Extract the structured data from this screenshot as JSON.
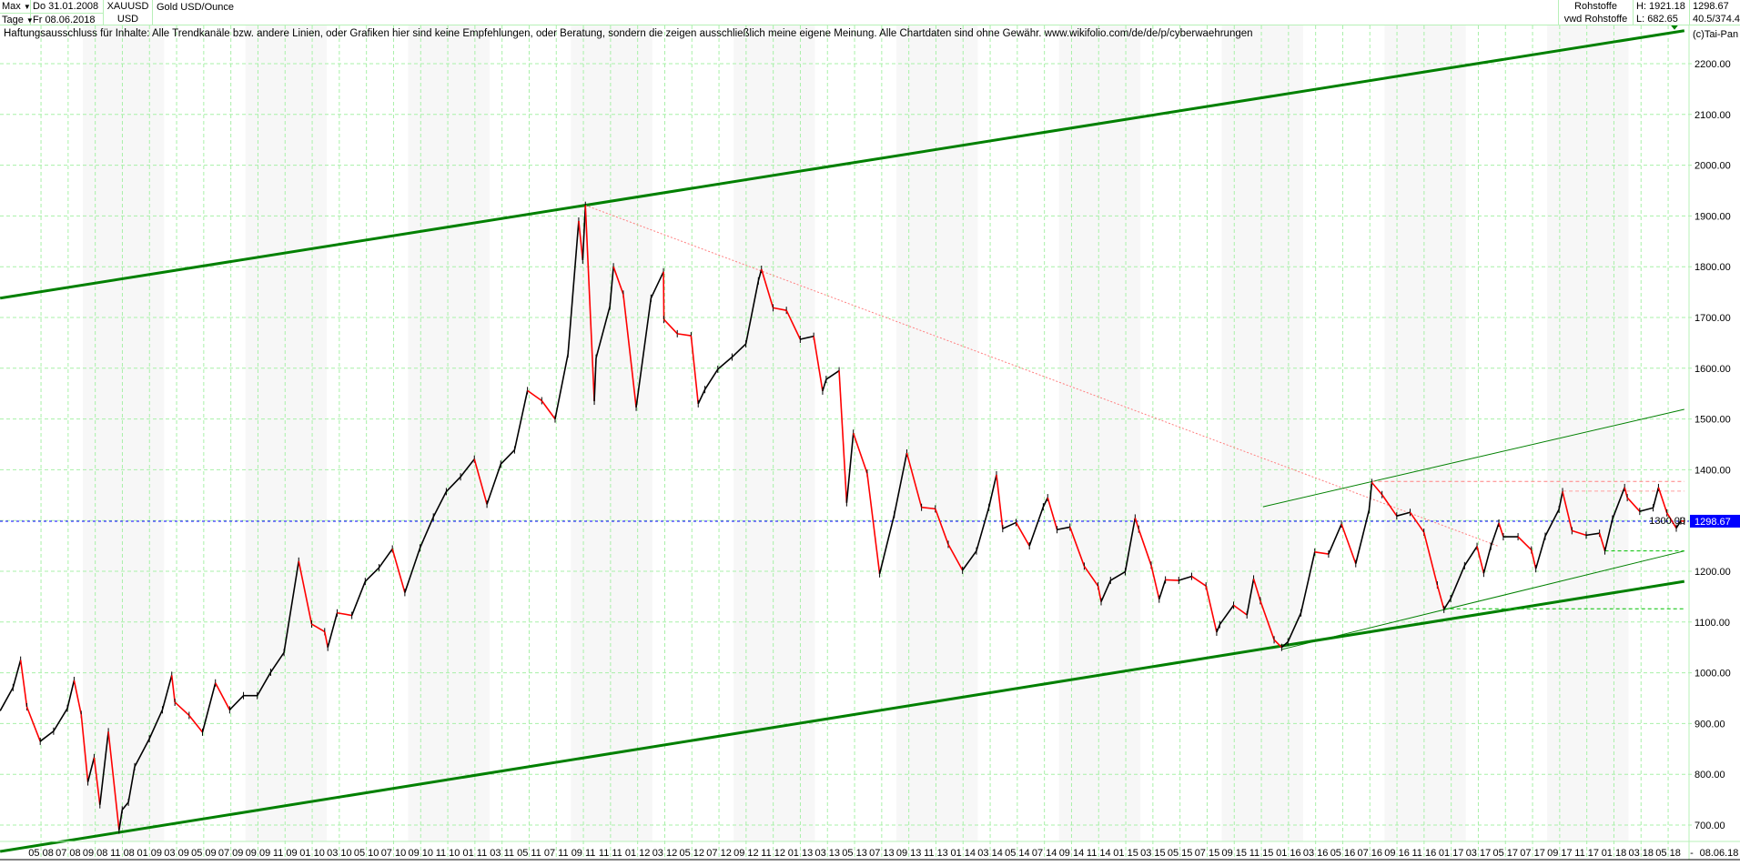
{
  "header": {
    "range_select": "Max",
    "period_select": "Tage",
    "date_from": "Do 31.01.2008",
    "date_to": "Fr 08.06.2018",
    "symbol": "XAUUSD",
    "currency": "USD",
    "name": "Gold USD/Ounce",
    "source1": "Rohstoffe",
    "source2": "vwd Rohstoffe",
    "high": "H: 1921.18",
    "low": "L: 682.65",
    "last": "1298.67",
    "extra": "40.5/374.4"
  },
  "disclaimer": "Haftungsausschluss für Inhalte: Alle Trendkanäle bzw. andere Linien, oder Grafiken hier sind keine Empfehlungen, oder Beratung, sondern die zeigen ausschließlich meine eigene Meinung. Alle Chartdaten sind ohne Gewähr.  www.wikifolio.com/de/de/p/cyberwaehrungen",
  "copyright": "(c)Tai-Pan",
  "colors": {
    "up": "#000000",
    "down": "#ff0000",
    "grid": "#a8f0a8",
    "channel": "#008000",
    "trend": "#ff8080",
    "last_price": "#0000ff",
    "band": "#f7f7f7"
  },
  "chart_data": {
    "type": "line",
    "title": "Gold USD/Ounce",
    "ylim": [
      650,
      2280
    ],
    "xlim": [
      "2008-01-31",
      "2018-06-08"
    ],
    "grid": true,
    "y_ticks": [
      "700.00",
      "800.00",
      "900.00",
      "1000.00",
      "1100.00",
      "1200.00",
      "1300.00",
      "1400.00",
      "1500.00",
      "1600.00",
      "1700.00",
      "1800.00",
      "1900.00",
      "2000.00",
      "2100.00",
      "2200.00"
    ],
    "x_ticks": [
      "05 08",
      "07 08",
      "09 08",
      "11 08",
      "01 09",
      "03 09",
      "05 09",
      "07 09",
      "09 09",
      "11 09",
      "01 10",
      "03 10",
      "05 10",
      "07 10",
      "09 10",
      "11 10",
      "01 11",
      "03 11",
      "05 11",
      "07 11",
      "09 11",
      "11 11",
      "01 12",
      "03 12",
      "05 12",
      "07 12",
      "09 12",
      "11 12",
      "01 13",
      "03 13",
      "05 13",
      "07 13",
      "09 13",
      "11 13",
      "01 14",
      "03 14",
      "05 14",
      "07 14",
      "09 14",
      "11 14",
      "01 15",
      "03 15",
      "05 15",
      "07 15",
      "09 15",
      "11 15",
      "01 16",
      "03 16",
      "05 16",
      "07 16",
      "09 16",
      "11 16",
      "01 17",
      "03 17",
      "05 17",
      "07 17",
      "09 17",
      "11 17",
      "01 18",
      "03 18",
      "05 18"
    ],
    "x_end_label": "08.06.18",
    "x_end_sep": "-",
    "last_price_label": "1298.67",
    "series": [
      {
        "points": [
          [
            "2008-01-31",
            925
          ],
          [
            "2008-02-29",
            971
          ],
          [
            "2008-03-17",
            1025
          ],
          [
            "2008-03-31",
            933
          ],
          [
            "2008-04-30",
            865
          ],
          [
            "2008-05-30",
            885
          ],
          [
            "2008-06-30",
            930
          ],
          [
            "2008-07-15",
            985
          ],
          [
            "2008-07-31",
            918
          ],
          [
            "2008-08-15",
            785
          ],
          [
            "2008-08-29",
            833
          ],
          [
            "2008-09-11",
            740
          ],
          [
            "2008-09-30",
            884
          ],
          [
            "2008-10-24",
            690
          ],
          [
            "2008-10-31",
            730
          ],
          [
            "2008-11-14",
            745
          ],
          [
            "2008-11-28",
            815
          ],
          [
            "2008-12-31",
            870
          ],
          [
            "2009-01-30",
            927
          ],
          [
            "2009-02-20",
            995
          ],
          [
            "2009-02-27",
            942
          ],
          [
            "2009-03-31",
            916
          ],
          [
            "2009-04-30",
            883
          ],
          [
            "2009-05-29",
            980
          ],
          [
            "2009-06-30",
            927
          ],
          [
            "2009-07-31",
            955
          ],
          [
            "2009-08-31",
            955
          ],
          [
            "2009-09-30",
            1001
          ],
          [
            "2009-10-30",
            1040
          ],
          [
            "2009-12-02",
            1220
          ],
          [
            "2009-12-31",
            1096
          ],
          [
            "2010-01-29",
            1081
          ],
          [
            "2010-02-05",
            1050
          ],
          [
            "2010-02-26",
            1118
          ],
          [
            "2010-03-31",
            1113
          ],
          [
            "2010-04-30",
            1180
          ],
          [
            "2010-05-31",
            1207
          ],
          [
            "2010-06-30",
            1244
          ],
          [
            "2010-07-28",
            1158
          ],
          [
            "2010-08-31",
            1246
          ],
          [
            "2010-09-30",
            1307
          ],
          [
            "2010-10-29",
            1357
          ],
          [
            "2010-11-30",
            1386
          ],
          [
            "2010-12-31",
            1421
          ],
          [
            "2011-01-28",
            1332
          ],
          [
            "2011-02-28",
            1411
          ],
          [
            "2011-03-31",
            1439
          ],
          [
            "2011-04-29",
            1556
          ],
          [
            "2011-05-31",
            1536
          ],
          [
            "2011-06-30",
            1500
          ],
          [
            "2011-07-29",
            1628
          ],
          [
            "2011-08-22",
            1890
          ],
          [
            "2011-08-31",
            1813
          ],
          [
            "2011-09-06",
            1921
          ],
          [
            "2011-09-26",
            1535
          ],
          [
            "2011-09-30",
            1620
          ],
          [
            "2011-10-31",
            1722
          ],
          [
            "2011-11-08",
            1800
          ],
          [
            "2011-11-30",
            1746
          ],
          [
            "2011-12-29",
            1523
          ],
          [
            "2012-01-31",
            1738
          ],
          [
            "2012-02-28",
            1790
          ],
          [
            "2012-02-29",
            1696
          ],
          [
            "2012-03-30",
            1668
          ],
          [
            "2012-04-30",
            1664
          ],
          [
            "2012-05-16",
            1530
          ],
          [
            "2012-05-31",
            1558
          ],
          [
            "2012-06-29",
            1598
          ],
          [
            "2012-07-31",
            1622
          ],
          [
            "2012-08-31",
            1648
          ],
          [
            "2012-09-28",
            1772
          ],
          [
            "2012-10-05",
            1795
          ],
          [
            "2012-10-31",
            1719
          ],
          [
            "2012-11-30",
            1714
          ],
          [
            "2012-12-31",
            1657
          ],
          [
            "2013-01-31",
            1663
          ],
          [
            "2013-02-20",
            1555
          ],
          [
            "2013-02-28",
            1578
          ],
          [
            "2013-03-29",
            1595
          ],
          [
            "2013-04-15",
            1335
          ],
          [
            "2013-04-30",
            1472
          ],
          [
            "2013-05-31",
            1393
          ],
          [
            "2013-06-28",
            1195
          ],
          [
            "2013-07-31",
            1312
          ],
          [
            "2013-08-28",
            1433
          ],
          [
            "2013-09-30",
            1326
          ],
          [
            "2013-10-31",
            1323
          ],
          [
            "2013-11-29",
            1253
          ],
          [
            "2013-12-31",
            1202
          ],
          [
            "2014-01-31",
            1240
          ],
          [
            "2014-02-28",
            1326
          ],
          [
            "2014-03-17",
            1390
          ],
          [
            "2014-03-31",
            1284
          ],
          [
            "2014-04-30",
            1296
          ],
          [
            "2014-05-30",
            1250
          ],
          [
            "2014-06-30",
            1327
          ],
          [
            "2014-07-10",
            1345
          ],
          [
            "2014-07-31",
            1282
          ],
          [
            "2014-08-29",
            1287
          ],
          [
            "2014-09-30",
            1210
          ],
          [
            "2014-10-31",
            1171
          ],
          [
            "2014-11-07",
            1140
          ],
          [
            "2014-11-28",
            1182
          ],
          [
            "2014-12-31",
            1199
          ],
          [
            "2015-01-22",
            1305
          ],
          [
            "2015-01-30",
            1283
          ],
          [
            "2015-02-27",
            1212
          ],
          [
            "2015-03-17",
            1145
          ],
          [
            "2015-03-31",
            1183
          ],
          [
            "2015-04-30",
            1182
          ],
          [
            "2015-05-29",
            1190
          ],
          [
            "2015-06-30",
            1171
          ],
          [
            "2015-07-24",
            1080
          ],
          [
            "2015-07-31",
            1095
          ],
          [
            "2015-08-31",
            1133
          ],
          [
            "2015-09-30",
            1114
          ],
          [
            "2015-10-15",
            1185
          ],
          [
            "2015-10-30",
            1142
          ],
          [
            "2015-11-30",
            1065
          ],
          [
            "2015-12-17",
            1050
          ],
          [
            "2015-12-31",
            1061
          ],
          [
            "2016-01-29",
            1118
          ],
          [
            "2016-02-29",
            1238
          ],
          [
            "2016-03-31",
            1234
          ],
          [
            "2016-04-29",
            1293
          ],
          [
            "2016-05-31",
            1215
          ],
          [
            "2016-06-30",
            1321
          ],
          [
            "2016-07-06",
            1375
          ],
          [
            "2016-07-29",
            1351
          ],
          [
            "2016-08-31",
            1309
          ],
          [
            "2016-09-30",
            1316
          ],
          [
            "2016-10-31",
            1277
          ],
          [
            "2016-11-30",
            1173
          ],
          [
            "2016-12-15",
            1125
          ],
          [
            "2016-12-30",
            1146
          ],
          [
            "2017-01-31",
            1211
          ],
          [
            "2017-02-28",
            1249
          ],
          [
            "2017-03-15",
            1196
          ],
          [
            "2017-03-31",
            1249
          ],
          [
            "2017-04-18",
            1295
          ],
          [
            "2017-04-28",
            1268
          ],
          [
            "2017-05-31",
            1268
          ],
          [
            "2017-06-30",
            1242
          ],
          [
            "2017-07-10",
            1205
          ],
          [
            "2017-07-31",
            1269
          ],
          [
            "2017-08-31",
            1322
          ],
          [
            "2017-09-08",
            1357
          ],
          [
            "2017-09-29",
            1280
          ],
          [
            "2017-10-31",
            1271
          ],
          [
            "2017-11-30",
            1275
          ],
          [
            "2017-12-12",
            1240
          ],
          [
            "2017-12-29",
            1303
          ],
          [
            "2018-01-25",
            1365
          ],
          [
            "2018-01-31",
            1345
          ],
          [
            "2018-02-28",
            1318
          ],
          [
            "2018-03-30",
            1325
          ],
          [
            "2018-04-11",
            1365
          ],
          [
            "2018-04-30",
            1315
          ],
          [
            "2018-05-21",
            1285
          ],
          [
            "2018-05-31",
            1299
          ],
          [
            "2018-06-08",
            1298.67
          ]
        ]
      }
    ],
    "annotations": [
      {
        "kind": "channel-upper",
        "style": "thick",
        "color": "#008000",
        "from": [
          "2008-01-31",
          1738
        ],
        "to": [
          "2018-06-08",
          2265
        ]
      },
      {
        "kind": "channel-lower",
        "style": "thick",
        "color": "#008000",
        "from": [
          "2008-01-31",
          648
        ],
        "to": [
          "2018-06-08",
          1180
        ]
      },
      {
        "kind": "downtrend",
        "style": "dotted",
        "color": "#ff8080",
        "from": [
          "2011-09-06",
          1921
        ],
        "to": [
          "2017-04-15",
          1250
        ]
      },
      {
        "kind": "channel2-upper",
        "style": "thin",
        "color": "#008000",
        "from": [
          "2015-11-05",
          1327
        ],
        "to": [
          "2018-06-08",
          1519
        ]
      },
      {
        "kind": "channel2-lower",
        "style": "thin",
        "color": "#008000",
        "from": [
          "2015-12-17",
          1046
        ],
        "to": [
          "2018-06-08",
          1240
        ]
      },
      {
        "kind": "resistance",
        "style": "dashed",
        "color": "#ff8080",
        "from": [
          "2016-07-06",
          1377
        ],
        "to": [
          "2018-06-08",
          1377
        ]
      },
      {
        "kind": "resistance",
        "style": "dashed",
        "color": "#ffa0a0",
        "from": [
          "2017-09-08",
          1358
        ],
        "to": [
          "2018-06-08",
          1358
        ]
      },
      {
        "kind": "support",
        "style": "dashed",
        "color": "#00c000",
        "from": [
          "2017-12-12",
          1240
        ],
        "to": [
          "2018-06-08",
          1240
        ]
      },
      {
        "kind": "support",
        "style": "dashed",
        "color": "#00c000",
        "from": [
          "2016-12-15",
          1126
        ],
        "to": [
          "2018-06-08",
          1126
        ]
      }
    ]
  }
}
